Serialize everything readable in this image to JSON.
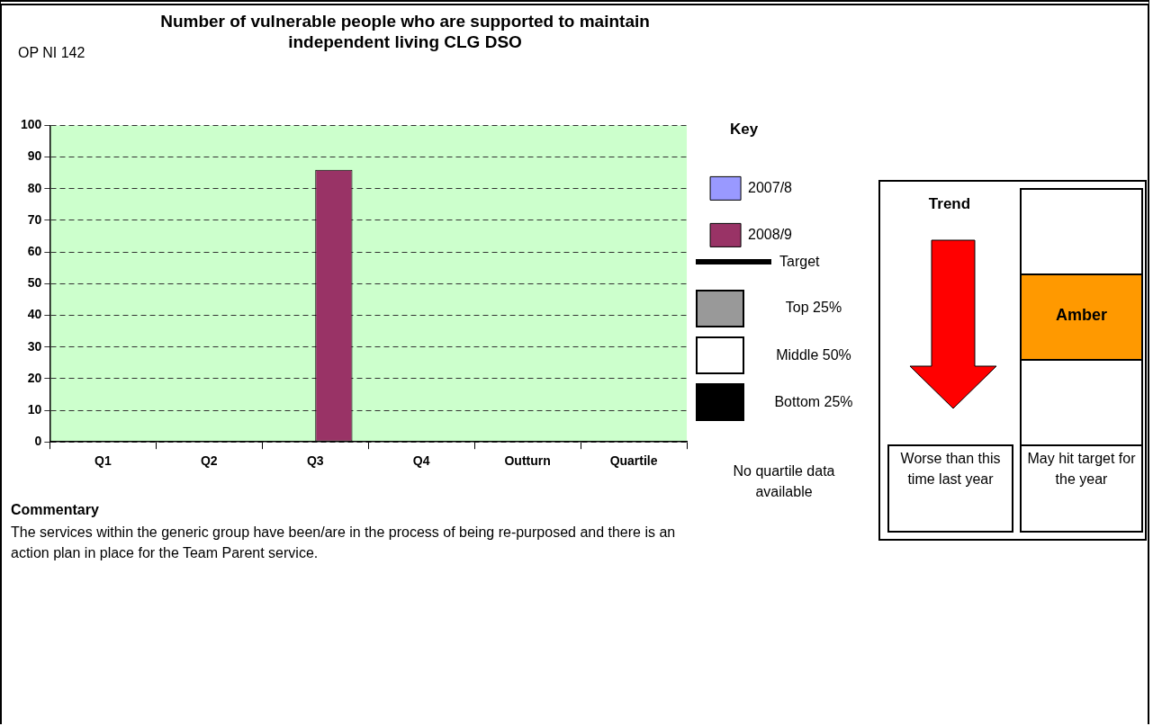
{
  "chart_data": {
    "type": "bar",
    "title": "Number of vulnerable people who are supported to maintain independent living CLG DSO",
    "categories": [
      "Q1",
      "Q2",
      "Q3",
      "Q4",
      "Outturn",
      "Quartile"
    ],
    "series": [
      {
        "name": "2007/8",
        "color": "#9999ff",
        "values": [
          null,
          null,
          null,
          null,
          null,
          null
        ]
      },
      {
        "name": "2008/9",
        "color": "#993366",
        "values": [
          null,
          null,
          86,
          null,
          null,
          null
        ]
      }
    ],
    "ylim": [
      0,
      100
    ],
    "yticks": [
      0,
      10,
      20,
      30,
      40,
      50,
      60,
      70,
      80,
      90,
      100
    ],
    "grid": "y",
    "legend": "right",
    "legend_title": "Key",
    "annotations": [
      "OP NI 142",
      "Target",
      "Top 25%",
      "Middle 50%",
      "Bottom 25%",
      "No quartile data available",
      "Trend",
      "Amber",
      "Worse than this time last year",
      "May hit target for the year",
      "Commentary",
      "The services within the generic group have been/are in the process of being re-purposed and there is an action plan in place for the Team Parent service."
    ]
  }
}
